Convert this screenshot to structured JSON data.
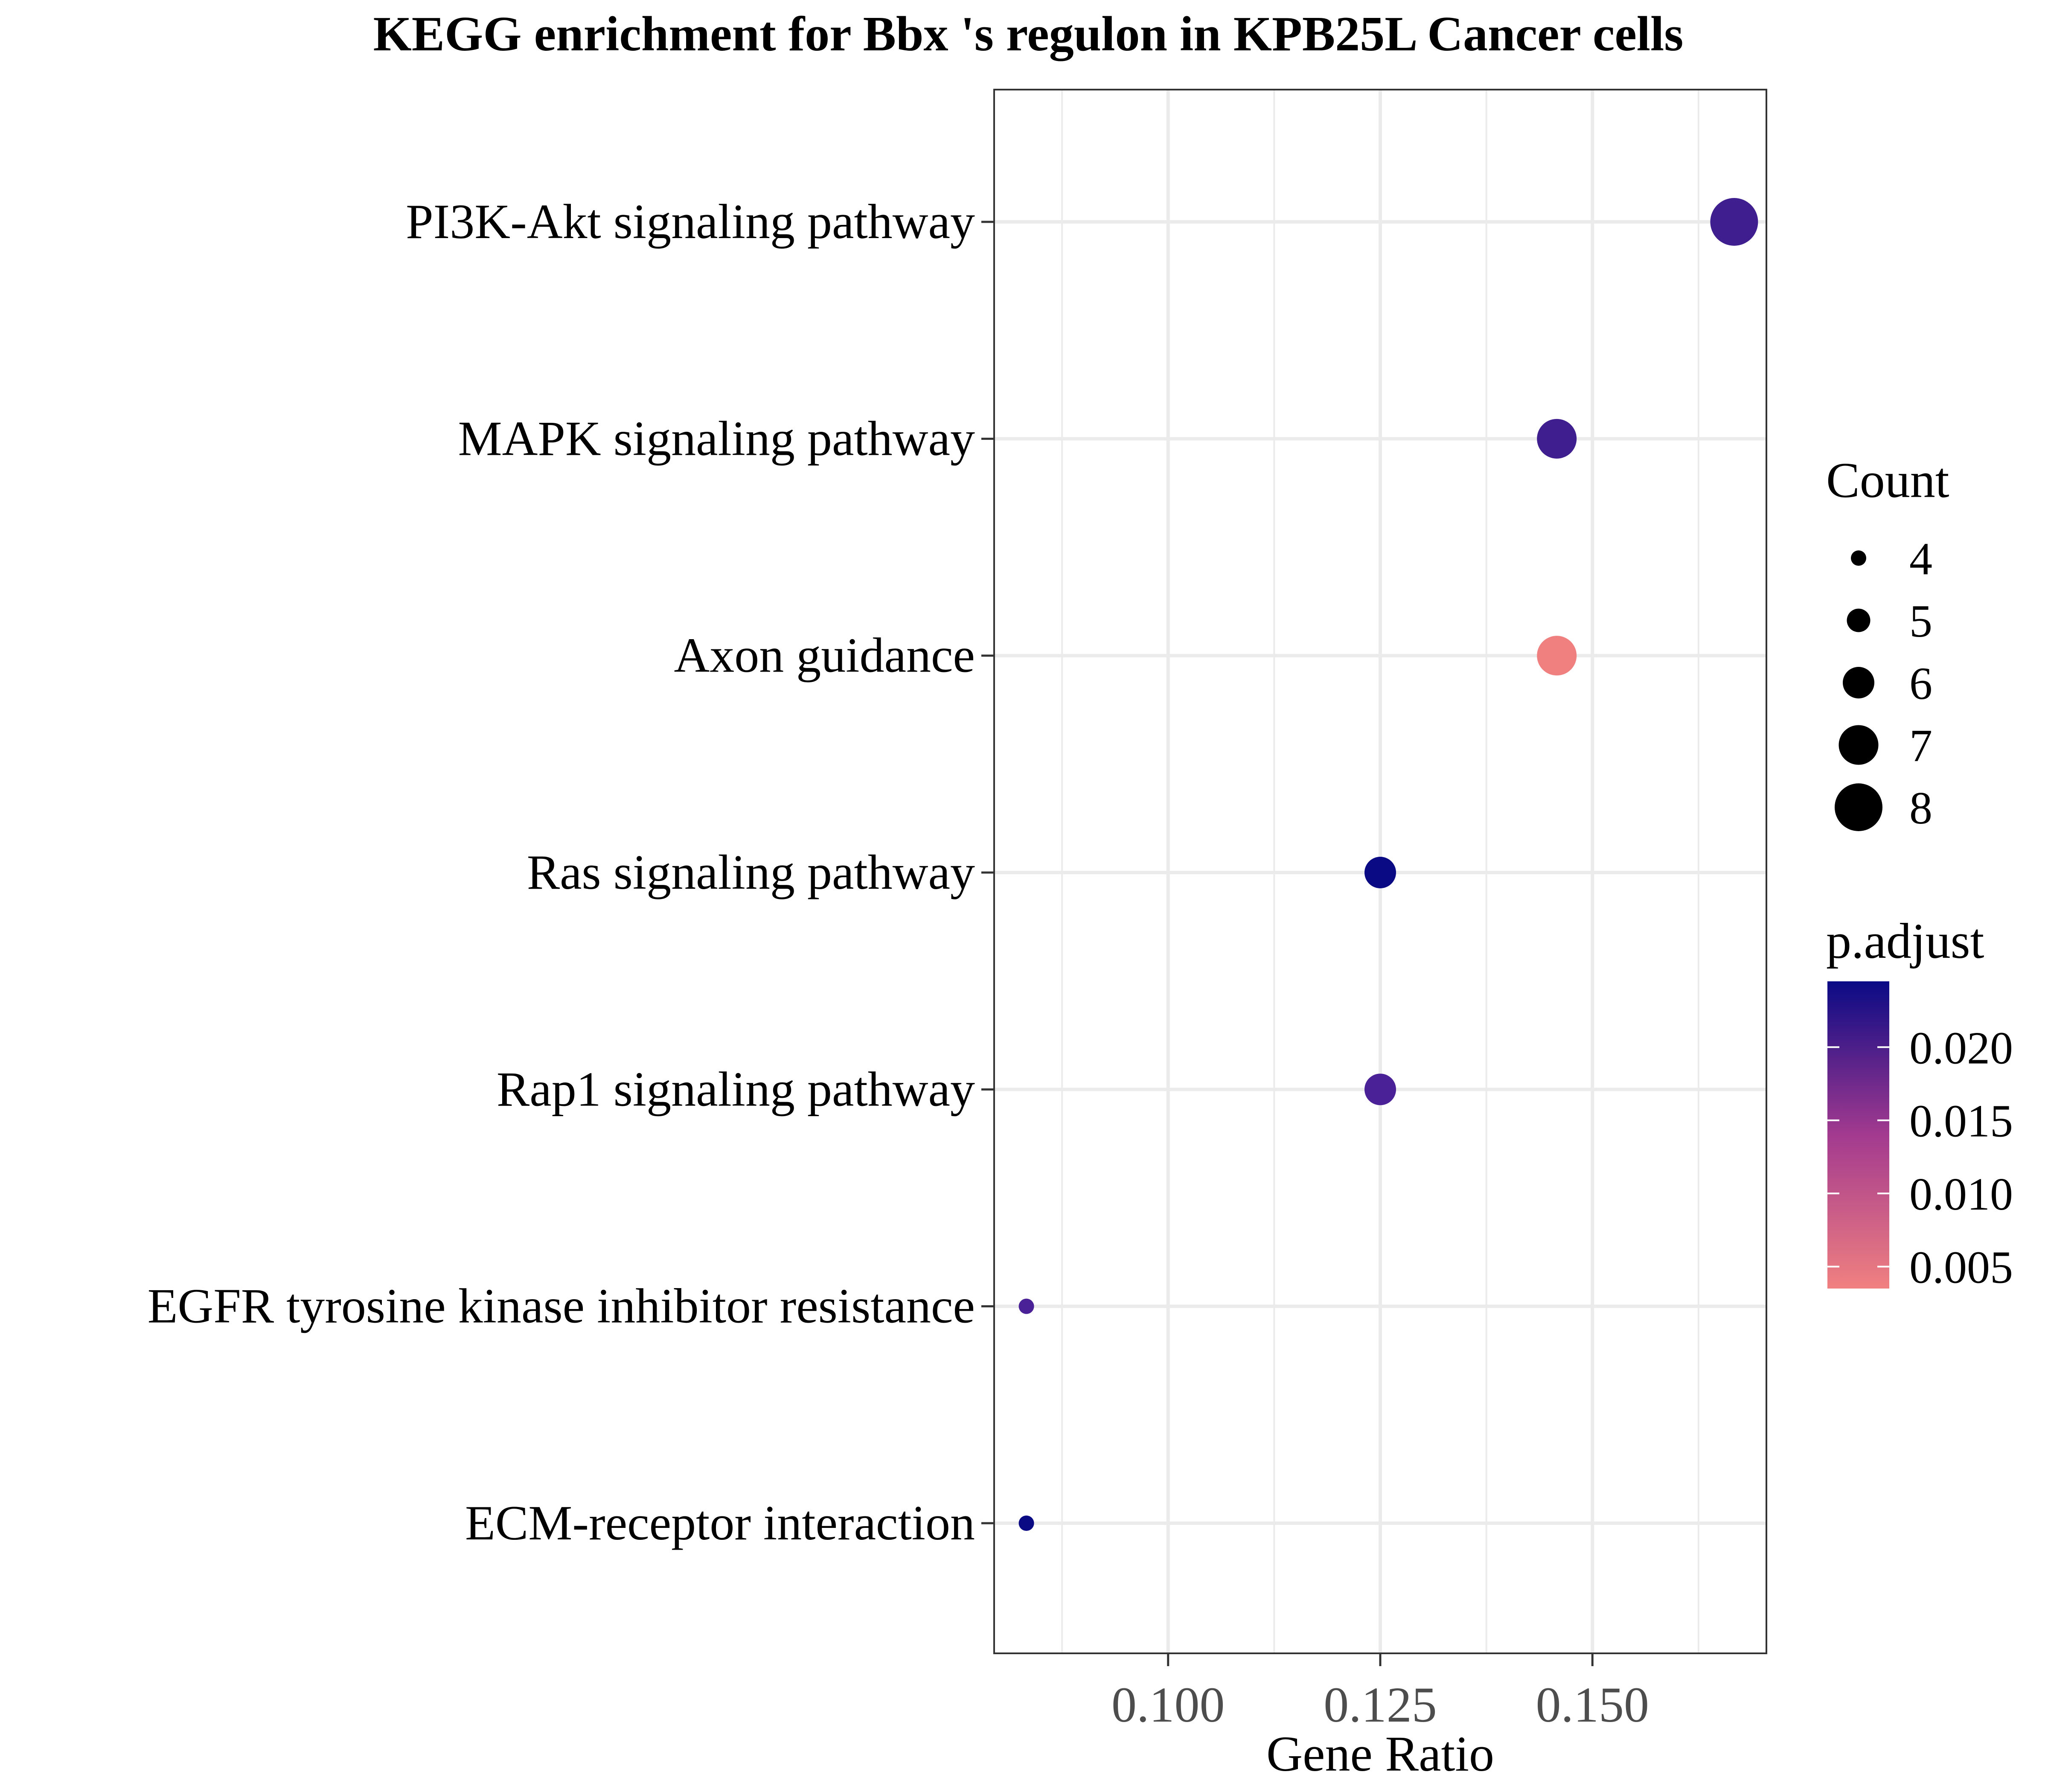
{
  "chart_data": {
    "type": "scatter",
    "title": "KEGG enrichment for Bbx 's regulon in KPB25L Cancer cells",
    "xlabel": "Gene Ratio",
    "ylabel": "",
    "xlim": [
      0.0795,
      0.1705
    ],
    "xticks": [
      0.1,
      0.125,
      0.15
    ],
    "xtick_labels": [
      "0.100",
      "0.125",
      "0.150"
    ],
    "grid": true,
    "categories": [
      "PI3K-Akt signaling pathway",
      "MAPK signaling pathway",
      "Axon guidance",
      "Ras signaling pathway",
      "Rap1 signaling pathway",
      "EGFR tyrosine kinase inhibitor resistance",
      "ECM-receptor interaction"
    ],
    "points": [
      {
        "term": "PI3K-Akt signaling pathway",
        "gene_ratio": 0.1667,
        "count": 8,
        "p_adjust": 0.021,
        "color": "#3F1E8F"
      },
      {
        "term": "MAPK signaling pathway",
        "gene_ratio": 0.1458,
        "count": 7,
        "p_adjust": 0.021,
        "color": "#3F1E8F"
      },
      {
        "term": "Axon guidance",
        "gene_ratio": 0.1458,
        "count": 7,
        "p_adjust": 0.0035,
        "color": "#F08080"
      },
      {
        "term": "Ras signaling pathway",
        "gene_ratio": 0.125,
        "count": 6,
        "p_adjust": 0.0245,
        "color": "#0A0A85"
      },
      {
        "term": "Rap1 signaling pathway",
        "gene_ratio": 0.125,
        "count": 6,
        "p_adjust": 0.0195,
        "color": "#4A2196"
      },
      {
        "term": "EGFR tyrosine kinase inhibitor resistance",
        "gene_ratio": 0.0833,
        "count": 4,
        "p_adjust": 0.0195,
        "color": "#4A2196"
      },
      {
        "term": "ECM-receptor interaction",
        "gene_ratio": 0.0833,
        "count": 4,
        "p_adjust": 0.0245,
        "color": "#0A0A85"
      }
    ],
    "legend": {
      "size_title": "Count",
      "size_values": [
        4,
        5,
        6,
        7,
        8
      ],
      "size_labels": [
        "4",
        "5",
        "6",
        "7",
        "8"
      ],
      "color_title": "p.adjust",
      "color_min": 0.0035,
      "color_max": 0.0245,
      "color_low": "#F08080",
      "color_high": "#0A0A85",
      "color_ticks": [
        0.005,
        0.01,
        0.015,
        0.02
      ],
      "color_tick_labels": [
        "0.005",
        "0.010",
        "0.015",
        "0.020"
      ],
      "placement": "right"
    }
  }
}
